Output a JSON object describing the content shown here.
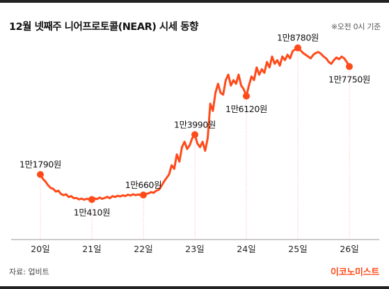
{
  "header": {
    "title": "12월 넷째주 니어프로토콜(NEAR) 시세 동향",
    "note": "※오전 0시 기준"
  },
  "footer": {
    "source": "자료: 업비트",
    "brand": "이코노미스트"
  },
  "chart_data": {
    "type": "line",
    "title": "12월 넷째주 니어프로토콜(NEAR) 시세 동향",
    "xlabel": "",
    "ylabel": "",
    "x_ticks": [
      "20일",
      "21일",
      "22일",
      "23일",
      "24일",
      "25일",
      "26일"
    ],
    "y_range": [
      9200,
      19500
    ],
    "grid": false,
    "color": "#ff4a1a",
    "annotations": [
      {
        "day": 0,
        "value": 11790,
        "label": "1만1790원",
        "pos": "above"
      },
      {
        "day": 1,
        "value": 10410,
        "label": "1만410원",
        "pos": "below"
      },
      {
        "day": 2,
        "value": 10660,
        "label": "1만660원",
        "pos": "above"
      },
      {
        "day": 3,
        "value": 13990,
        "label": "1만3990원",
        "pos": "above"
      },
      {
        "day": 4,
        "value": 16120,
        "label": "1만6120원",
        "pos": "below"
      },
      {
        "day": 5,
        "value": 18780,
        "label": "1만8780원",
        "pos": "above"
      },
      {
        "day": 6,
        "value": 17750,
        "label": "1만7750원",
        "pos": "below"
      }
    ],
    "series": [
      {
        "values": [
          [
            0.0,
            11790
          ],
          [
            0.05,
            11550
          ],
          [
            0.1,
            11400
          ],
          [
            0.15,
            11200
          ],
          [
            0.2,
            11050
          ],
          [
            0.25,
            11000
          ],
          [
            0.3,
            10850
          ],
          [
            0.35,
            10900
          ],
          [
            0.4,
            10720
          ],
          [
            0.45,
            10650
          ],
          [
            0.5,
            10700
          ],
          [
            0.55,
            10550
          ],
          [
            0.6,
            10600
          ],
          [
            0.65,
            10480
          ],
          [
            0.7,
            10500
          ],
          [
            0.75,
            10420
          ],
          [
            0.8,
            10460
          ],
          [
            0.85,
            10400
          ],
          [
            0.9,
            10450
          ],
          [
            0.95,
            10420
          ],
          [
            1.0,
            10410
          ],
          [
            1.05,
            10480
          ],
          [
            1.1,
            10430
          ],
          [
            1.15,
            10520
          ],
          [
            1.2,
            10450
          ],
          [
            1.25,
            10500
          ],
          [
            1.3,
            10560
          ],
          [
            1.35,
            10480
          ],
          [
            1.4,
            10600
          ],
          [
            1.45,
            10550
          ],
          [
            1.5,
            10620
          ],
          [
            1.55,
            10580
          ],
          [
            1.6,
            10640
          ],
          [
            1.65,
            10600
          ],
          [
            1.7,
            10680
          ],
          [
            1.75,
            10630
          ],
          [
            1.8,
            10700
          ],
          [
            1.85,
            10650
          ],
          [
            1.9,
            10690
          ],
          [
            1.95,
            10640
          ],
          [
            2.0,
            10660
          ],
          [
            2.05,
            10720
          ],
          [
            2.1,
            10750
          ],
          [
            2.15,
            10820
          ],
          [
            2.2,
            10780
          ],
          [
            2.25,
            10900
          ],
          [
            2.3,
            10950
          ],
          [
            2.35,
            11150
          ],
          [
            2.4,
            11400
          ],
          [
            2.45,
            11600
          ],
          [
            2.5,
            11800
          ],
          [
            2.55,
            12300
          ],
          [
            2.6,
            12100
          ],
          [
            2.65,
            12900
          ],
          [
            2.7,
            12500
          ],
          [
            2.75,
            13300
          ],
          [
            2.8,
            13600
          ],
          [
            2.85,
            13200
          ],
          [
            2.9,
            13400
          ],
          [
            2.95,
            13800
          ],
          [
            3.0,
            13990
          ],
          [
            3.05,
            13500
          ],
          [
            3.1,
            13300
          ],
          [
            3.15,
            13600
          ],
          [
            3.2,
            13100
          ],
          [
            3.25,
            13800
          ],
          [
            3.3,
            15700
          ],
          [
            3.35,
            15300
          ],
          [
            3.4,
            16300
          ],
          [
            3.45,
            16800
          ],
          [
            3.5,
            16300
          ],
          [
            3.55,
            16200
          ],
          [
            3.6,
            17000
          ],
          [
            3.65,
            17300
          ],
          [
            3.7,
            16700
          ],
          [
            3.75,
            17000
          ],
          [
            3.8,
            16800
          ],
          [
            3.85,
            17300
          ],
          [
            3.9,
            16700
          ],
          [
            3.95,
            16500
          ],
          [
            4.0,
            16120
          ],
          [
            4.05,
            16700
          ],
          [
            4.1,
            17200
          ],
          [
            4.15,
            17000
          ],
          [
            4.2,
            17700
          ],
          [
            4.25,
            17300
          ],
          [
            4.3,
            17600
          ],
          [
            4.35,
            17400
          ],
          [
            4.4,
            18000
          ],
          [
            4.45,
            17700
          ],
          [
            4.5,
            18300
          ],
          [
            4.55,
            17900
          ],
          [
            4.6,
            18100
          ],
          [
            4.65,
            17800
          ],
          [
            4.7,
            18300
          ],
          [
            4.75,
            18100
          ],
          [
            4.8,
            18400
          ],
          [
            4.85,
            18200
          ],
          [
            4.9,
            18600
          ],
          [
            4.95,
            18700
          ],
          [
            5.0,
            18780
          ],
          [
            5.05,
            18650
          ],
          [
            5.1,
            18500
          ],
          [
            5.15,
            18400
          ],
          [
            5.2,
            18300
          ],
          [
            5.25,
            18200
          ],
          [
            5.3,
            18400
          ],
          [
            5.35,
            18500
          ],
          [
            5.4,
            18550
          ],
          [
            5.45,
            18450
          ],
          [
            5.5,
            18300
          ],
          [
            5.55,
            18200
          ],
          [
            5.6,
            18000
          ],
          [
            5.65,
            17900
          ],
          [
            5.7,
            18100
          ],
          [
            5.75,
            18250
          ],
          [
            5.8,
            18150
          ],
          [
            5.85,
            18300
          ],
          [
            5.9,
            18200
          ],
          [
            5.95,
            18000
          ],
          [
            6.0,
            17750
          ]
        ]
      }
    ]
  }
}
